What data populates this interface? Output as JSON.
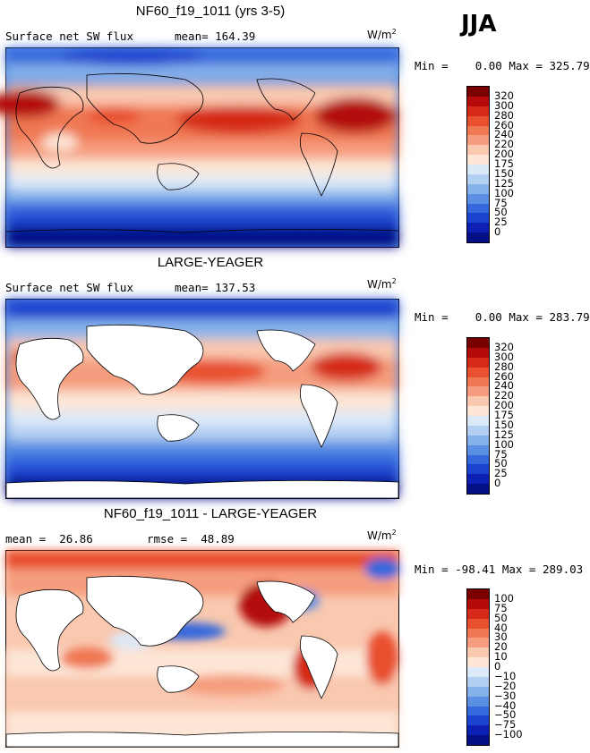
{
  "season": "JJA",
  "panels": [
    {
      "title": "NF60_f19_1011 (yrs 3-5)",
      "left_label": "Surface net SW flux",
      "right_label": "mean= 164.39",
      "units_base": "W/m",
      "units_exp": "2",
      "minmax": "Min =    0.00 Max = 325.79",
      "colorbar_labels": [
        "320",
        "300",
        "280",
        "260",
        "240",
        "220",
        "200",
        "175",
        "150",
        "125",
        "100",
        "75",
        "50",
        "25",
        "0"
      ],
      "colorbar_colors": [
        "#7a0000",
        "#b40a0a",
        "#d52a18",
        "#e8502f",
        "#f07852",
        "#f59d7e",
        "#f9c8af",
        "#fde6d6",
        "#dce9f8",
        "#b3cff1",
        "#86b2ea",
        "#5b8fe4",
        "#3468dc",
        "#1a43cf",
        "#0c21b3",
        "#050f86"
      ]
    },
    {
      "title": "LARGE-YEAGER",
      "left_label": "Surface net SW flux",
      "right_label": "mean= 137.53",
      "units_base": "W/m",
      "units_exp": "2",
      "minmax": "Min =    0.00 Max = 283.79",
      "colorbar_labels": [
        "320",
        "300",
        "280",
        "260",
        "240",
        "220",
        "200",
        "175",
        "150",
        "125",
        "100",
        "75",
        "50",
        "25",
        "0"
      ],
      "colorbar_colors": [
        "#7a0000",
        "#b40a0a",
        "#d52a18",
        "#e8502f",
        "#f07852",
        "#f59d7e",
        "#f9c8af",
        "#fde6d6",
        "#dce9f8",
        "#b3cff1",
        "#86b2ea",
        "#5b8fe4",
        "#3468dc",
        "#1a43cf",
        "#0c21b3",
        "#050f86"
      ]
    },
    {
      "title": "NF60_f19_1011 - LARGE-YEAGER",
      "left_label": "mean =  26.86",
      "right_label": "rmse =  48.89",
      "units_base": "W/m",
      "units_exp": "2",
      "minmax": "Min = -98.41 Max = 289.03",
      "colorbar_labels": [
        "100",
        "75",
        "50",
        "40",
        "30",
        "20",
        "10",
        "0",
        "−10",
        "−20",
        "−30",
        "−40",
        "−50",
        "−75",
        "−100"
      ],
      "colorbar_colors": [
        "#7a0000",
        "#b40a0a",
        "#d52a18",
        "#e8502f",
        "#f07852",
        "#f59d7e",
        "#f9c8af",
        "#fde6d6",
        "#dce9f8",
        "#b3cff1",
        "#86b2ea",
        "#5b8fe4",
        "#3468dc",
        "#1a43cf",
        "#0c21b3",
        "#050f86"
      ]
    }
  ]
}
